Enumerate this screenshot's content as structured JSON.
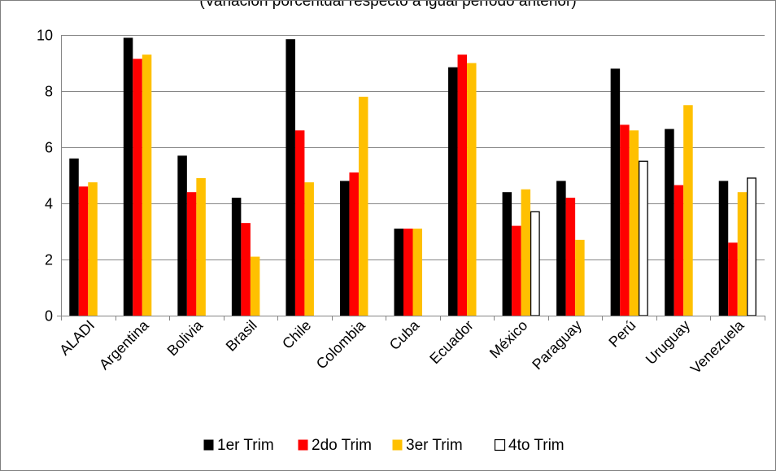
{
  "chart_data": {
    "type": "bar",
    "subtitle": "(Variación porcentual respecto a igual período anterior)",
    "categories": [
      "ALADI",
      "Argentina",
      "Bolivia",
      "Brasil",
      "Chile",
      "Colombia",
      "Cuba",
      "Ecuador",
      "México",
      "Paraguay",
      "Perú",
      "Uruguay",
      "Venezuela"
    ],
    "series": [
      {
        "name": "1er Trim",
        "color": "#000000",
        "values": [
          5.6,
          9.9,
          5.7,
          4.2,
          9.85,
          4.8,
          3.1,
          8.85,
          4.4,
          4.8,
          8.8,
          6.65,
          4.8
        ]
      },
      {
        "name": "2do Trim",
        "color": "#ff0000",
        "values": [
          4.6,
          9.15,
          4.4,
          3.3,
          6.6,
          5.1,
          3.1,
          9.3,
          3.2,
          4.2,
          6.8,
          4.65,
          2.6
        ]
      },
      {
        "name": "3er Trim",
        "color": "#ffc000",
        "values": [
          4.75,
          9.3,
          4.9,
          2.1,
          4.75,
          7.8,
          3.1,
          9.0,
          4.5,
          2.7,
          6.6,
          7.5,
          4.4
        ]
      },
      {
        "name": "4to Trim",
        "color": "#ffffff",
        "values": [
          null,
          null,
          null,
          null,
          null,
          null,
          null,
          null,
          3.7,
          null,
          5.5,
          null,
          4.9
        ]
      }
    ],
    "ylim": [
      0,
      10
    ],
    "yticks": [
      0,
      2,
      4,
      6,
      8,
      10
    ],
    "grid": true,
    "legend": "bottom"
  }
}
